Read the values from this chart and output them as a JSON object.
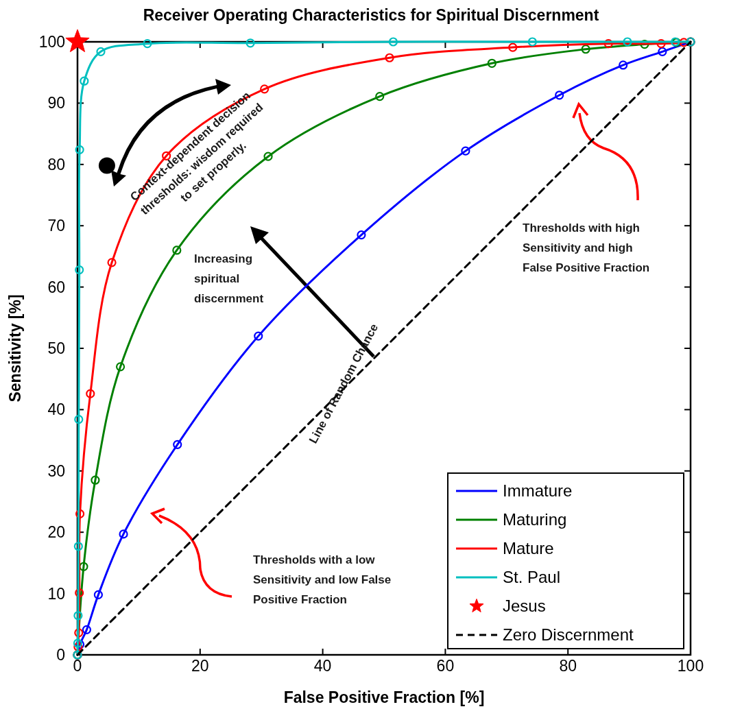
{
  "chart_data": {
    "type": "line",
    "title": "Receiver Operating Characteristics for Spiritual Discernment",
    "xlabel": "False Positive Fraction [%]",
    "ylabel": "Sensitivity [%]",
    "xlim": [
      0,
      100
    ],
    "ylim": [
      0,
      100
    ],
    "xticks": [
      0,
      20,
      40,
      60,
      80,
      100
    ],
    "yticks": [
      0,
      10,
      20,
      30,
      40,
      50,
      60,
      70,
      80,
      90,
      100
    ],
    "grid": false,
    "legend": "bottom right",
    "marker": "circle",
    "line_style": "solid",
    "series": [
      {
        "name": "Immature",
        "color": "#0000ff",
        "x": [
          0,
          0.4,
          1.5,
          3.4,
          7.5,
          16.3,
          29.5,
          46.3,
          63.3,
          78.6,
          89,
          95.4,
          100
        ],
        "values": [
          0,
          1.7,
          4.1,
          9.8,
          19.7,
          34.3,
          52,
          68.5,
          82.2,
          91.3,
          96.2,
          98.4,
          100
        ]
      },
      {
        "name": "Maturing",
        "color": "#008000",
        "x": [
          0,
          1,
          2.9,
          7,
          16.2,
          31.1,
          49.3,
          67.6,
          82.9,
          92.5,
          97.7,
          100
        ],
        "values": [
          0,
          14.4,
          28.5,
          47,
          66,
          81.3,
          91.1,
          96.5,
          98.8,
          99.6,
          99.9,
          100
        ]
      },
      {
        "name": "Mature",
        "color": "#ff0000",
        "x": [
          0,
          0.1,
          0.2,
          0.3,
          0.4,
          2.1,
          5.6,
          14.5,
          30.5,
          50.9,
          71,
          86.6,
          95.2,
          98.9,
          100
        ],
        "values": [
          0,
          1.3,
          3.6,
          10.1,
          23,
          42.6,
          64,
          81.4,
          92.3,
          97.4,
          99.1,
          99.7,
          99.7,
          99.9,
          100
        ]
      },
      {
        "name": "St. Paul",
        "color": "#00bfbf",
        "x": [
          0,
          0.05,
          0.1,
          0.15,
          0.2,
          0.3,
          0.35,
          1.1,
          3.8,
          11.4,
          28.2,
          51.5,
          74.2,
          89.7,
          97.5,
          100
        ],
        "values": [
          0,
          1.9,
          6.4,
          17.7,
          38.4,
          62.8,
          82.4,
          93.6,
          98.4,
          99.7,
          99.8,
          100,
          100,
          100,
          100,
          100
        ]
      },
      {
        "name": "Jesus",
        "type": "scatter",
        "marker": "star",
        "color": "#ff0000",
        "x": [
          0
        ],
        "values": [
          100
        ]
      },
      {
        "name": "Zero Discernment",
        "color": "#000000",
        "line_style": "dashed",
        "marker": "none",
        "x": [
          0,
          100
        ],
        "values": [
          0,
          100
        ]
      },
      {
        "type": "scatter",
        "marker": "circle",
        "color": "#000000",
        "x": [
          4.8
        ],
        "values": [
          79.8
        ]
      }
    ],
    "annotations": [
      "Context-dependent decision thresholds: wisdom required to set properly.",
      "Increasing spiritual discernment",
      "Line of Random Chance",
      "Thresholds with high Sensitivity and high False Positive Fraction",
      "Thresholds with a low Sensitivity and low False Positive Fraction"
    ]
  }
}
